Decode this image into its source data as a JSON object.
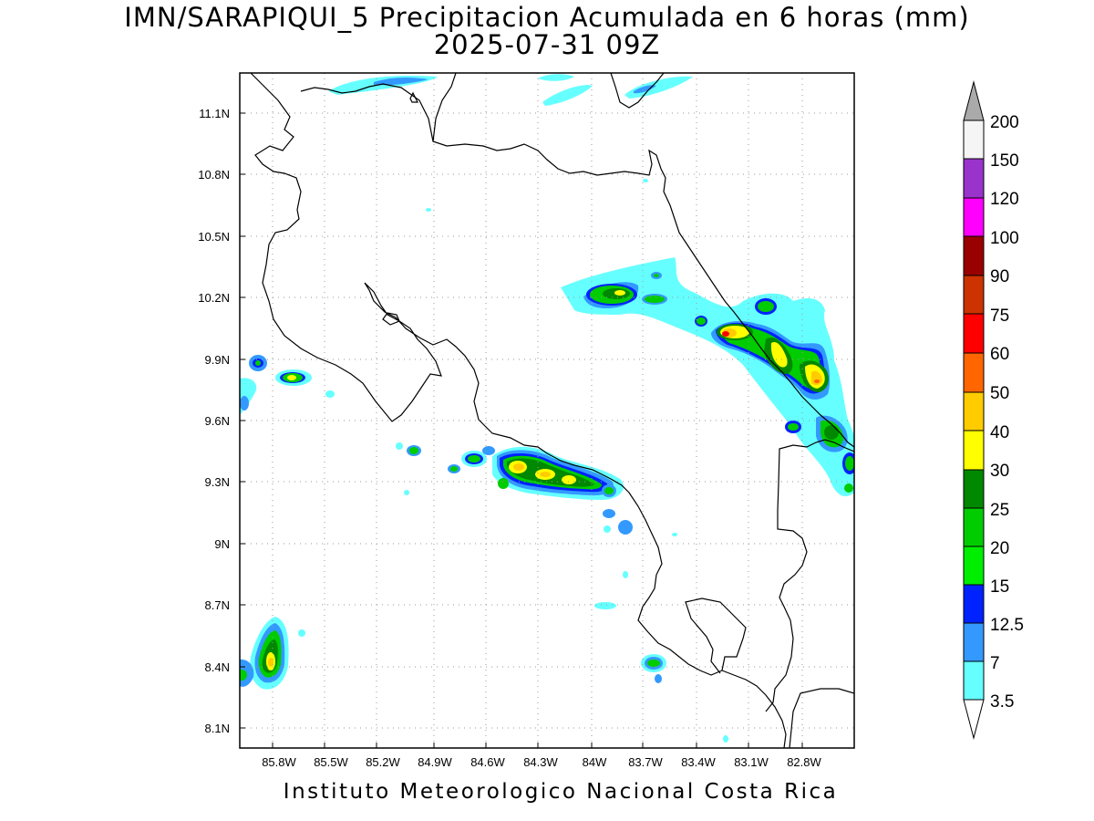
{
  "header": {
    "title_line1": "IMN/SARAPIQUI_5 Precipitacion Acumulada en 6 horas (mm)",
    "title_line2": "2025-07-31 09Z"
  },
  "footer": {
    "credit": "Instituto Meteorologico Nacional Costa Rica"
  },
  "axes": {
    "lon_ticks": [
      "85.8W",
      "85.5W",
      "85.2W",
      "84.9W",
      "84.6W",
      "84.3W",
      "84W",
      "83.7W",
      "83.4W",
      "83.1W",
      "82.8W"
    ],
    "lat_ticks": [
      "11.1N",
      "10.8N",
      "10.5N",
      "10.2N",
      "9.9N",
      "9.6N",
      "9.3N",
      "9N",
      "8.7N",
      "8.4N",
      "8.1N"
    ]
  },
  "colorbar": {
    "unit": "mm",
    "levels": [
      "3.5",
      "7",
      "12.5",
      "15",
      "20",
      "25",
      "30",
      "40",
      "50",
      "60",
      "75",
      "90",
      "100",
      "120",
      "150",
      "200"
    ],
    "colors": [
      "#66ffff",
      "#3399ff",
      "#0022ff",
      "#00ee00",
      "#00cc00",
      "#008800",
      "#ffff00",
      "#ffcc00",
      "#ff6600",
      "#ff0000",
      "#cc3300",
      "#990000",
      "#ff00ff",
      "#9933cc",
      "#f5f5f5",
      "#aaaaaa"
    ]
  },
  "chart_data": {
    "type": "heatmap",
    "title": "IMN/SARAPIQUI_5 Precipitacion Acumulada en 6 horas (mm)",
    "subtitle": "2025-07-31 09Z",
    "x_range": [
      "86.05W",
      "82.55W"
    ],
    "y_range": [
      "8.0N",
      "11.3N"
    ],
    "grid": true,
    "precip_cells_mm": [
      {
        "lon": -83.88,
        "lat": 10.22,
        "max": 30
      },
      {
        "lon": -83.13,
        "lat": 10.02,
        "max": 60
      },
      {
        "lon": -82.93,
        "lat": 9.93,
        "max": 40
      },
      {
        "lon": -82.78,
        "lat": 9.79,
        "max": 60
      },
      {
        "lon": -82.72,
        "lat": 9.55,
        "max": 30
      },
      {
        "lon": -84.43,
        "lat": 9.37,
        "max": 40
      },
      {
        "lon": -84.27,
        "lat": 9.33,
        "max": 40
      },
      {
        "lon": -84.12,
        "lat": 9.3,
        "max": 40
      },
      {
        "lon": -84.62,
        "lat": 9.4,
        "max": 25
      },
      {
        "lon": -85.75,
        "lat": 9.81,
        "max": 30
      },
      {
        "lon": -85.79,
        "lat": 8.42,
        "max": 40
      },
      {
        "lon": -83.66,
        "lat": 8.41,
        "max": 25
      }
    ]
  }
}
